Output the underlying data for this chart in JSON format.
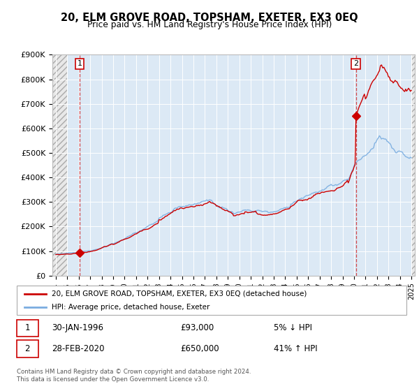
{
  "title": "20, ELM GROVE ROAD, TOPSHAM, EXETER, EX3 0EQ",
  "subtitle": "Price paid vs. HM Land Registry's House Price Index (HPI)",
  "ylim": [
    0,
    900000
  ],
  "yticks": [
    0,
    100000,
    200000,
    300000,
    400000,
    500000,
    600000,
    700000,
    800000,
    900000
  ],
  "ytick_labels": [
    "£0",
    "£100K",
    "£200K",
    "£300K",
    "£400K",
    "£500K",
    "£600K",
    "£700K",
    "£800K",
    "£900K"
  ],
  "xlim_start": 1993.7,
  "xlim_end": 2025.3,
  "xticks": [
    1994,
    1995,
    1996,
    1997,
    1998,
    1999,
    2000,
    2001,
    2002,
    2003,
    2004,
    2005,
    2006,
    2007,
    2008,
    2009,
    2010,
    2011,
    2012,
    2013,
    2014,
    2015,
    2016,
    2017,
    2018,
    2019,
    2020,
    2021,
    2022,
    2023,
    2024,
    2025
  ],
  "bg_color": "#dce9f5",
  "red_line_color": "#cc0000",
  "blue_line_color": "#7aade0",
  "marker_color": "#cc0000",
  "transaction1_year": 1996.08,
  "transaction1_price": 93000,
  "transaction2_year": 2020.17,
  "transaction2_price": 650000,
  "legend_line1": "20, ELM GROVE ROAD, TOPSHAM, EXETER, EX3 0EQ (detached house)",
  "legend_line2": "HPI: Average price, detached house, Exeter",
  "info1_label": "1",
  "info1_date": "30-JAN-1996",
  "info1_price": "£93,000",
  "info1_hpi": "5% ↓ HPI",
  "info2_label": "2",
  "info2_date": "28-FEB-2020",
  "info2_price": "£650,000",
  "info2_hpi": "41% ↑ HPI",
  "footer": "Contains HM Land Registry data © Crown copyright and database right 2024.\nThis data is licensed under the Open Government Licence v3.0."
}
